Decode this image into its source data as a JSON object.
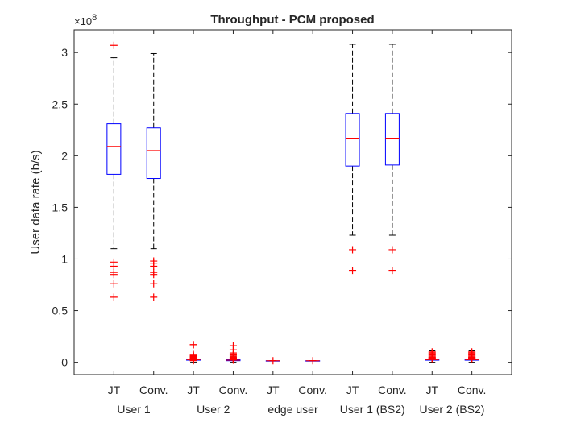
{
  "chart_data": {
    "type": "boxplot",
    "title": "Throughput - PCM proposed",
    "ylabel": "User data rate (b/s)",
    "xlabel": "",
    "y_exponent_label": "×10",
    "y_exponent_power": "8",
    "ylim": [
      -0.12,
      3.22
    ],
    "yticks": [
      0,
      0.5,
      1,
      1.5,
      2,
      2.5,
      3
    ],
    "ytick_labels": [
      "0",
      "0.5",
      "1",
      "1.5",
      "2",
      "2.5",
      "3"
    ],
    "grid": false,
    "colors": {
      "box": "#0000ff",
      "median": "#ff0000",
      "outlier": "#ff0000",
      "whisker": "#000000",
      "axis": "#262626"
    },
    "groups": [
      {
        "name": "User 1",
        "boxes": [
          {
            "label": "JT",
            "q1": 1.82,
            "median": 2.09,
            "q3": 2.31,
            "whisker_low": 1.1,
            "whisker_high": 2.95,
            "outliers": [
              3.07,
              0.97,
              0.93,
              0.87,
              0.85,
              0.76,
              0.63
            ]
          },
          {
            "label": "Conv.",
            "q1": 1.78,
            "median": 2.05,
            "q3": 2.27,
            "whisker_low": 1.1,
            "whisker_high": 2.99,
            "outliers": [
              0.98,
              0.96,
              0.93,
              0.87,
              0.85,
              0.76,
              0.63
            ]
          }
        ]
      },
      {
        "name": "User 2",
        "boxes": [
          {
            "label": "JT",
            "q1": 0.02,
            "median": 0.025,
            "q3": 0.03,
            "whisker_low": 0.0,
            "whisker_high": 0.06,
            "outliers": [
              0.17,
              0.17,
              0.075,
              0.065,
              0.06,
              0.055,
              0.05,
              0.045,
              0.04,
              0.035,
              0.03,
              0.025,
              0.02,
              0.015
            ]
          },
          {
            "label": "Conv.",
            "q1": 0.015,
            "median": 0.02,
            "q3": 0.025,
            "whisker_low": 0.0,
            "whisker_high": 0.05,
            "outliers": [
              0.16,
              0.12,
              0.09,
              0.07,
              0.06,
              0.05,
              0.045,
              0.04,
              0.035,
              0.03,
              0.025,
              0.02
            ]
          }
        ]
      },
      {
        "name": "edge user",
        "boxes": [
          {
            "label": "JT",
            "q1": 0.015,
            "median": 0.015,
            "q3": 0.015,
            "whisker_low": 0.015,
            "whisker_high": 0.015,
            "outliers": [
              0.015
            ]
          },
          {
            "label": "Conv.",
            "q1": 0.015,
            "median": 0.015,
            "q3": 0.015,
            "whisker_low": 0.015,
            "whisker_high": 0.015,
            "outliers": [
              0.015
            ]
          }
        ]
      },
      {
        "name": "User 1 (BS2)",
        "boxes": [
          {
            "label": "JT",
            "q1": 1.9,
            "median": 2.17,
            "q3": 2.41,
            "whisker_low": 1.23,
            "whisker_high": 3.08,
            "outliers": [
              1.09,
              0.89
            ]
          },
          {
            "label": "Conv.",
            "q1": 1.91,
            "median": 2.17,
            "q3": 2.41,
            "whisker_low": 1.23,
            "whisker_high": 3.08,
            "outliers": [
              1.09,
              0.89
            ]
          }
        ]
      },
      {
        "name": "User 2 (BS2)",
        "boxes": [
          {
            "label": "JT",
            "q1": 0.02,
            "median": 0.025,
            "q3": 0.03,
            "whisker_low": 0.0,
            "whisker_high": 0.11,
            "outliers": [
              0.1,
              0.09,
              0.08,
              0.07,
              0.06,
              0.05,
              0.045,
              0.04,
              0.035
            ]
          },
          {
            "label": "Conv.",
            "q1": 0.02,
            "median": 0.025,
            "q3": 0.03,
            "whisker_low": 0.0,
            "whisker_high": 0.11,
            "outliers": [
              0.1,
              0.09,
              0.08,
              0.07,
              0.06,
              0.05,
              0.045,
              0.04,
              0.035
            ]
          }
        ]
      }
    ]
  }
}
